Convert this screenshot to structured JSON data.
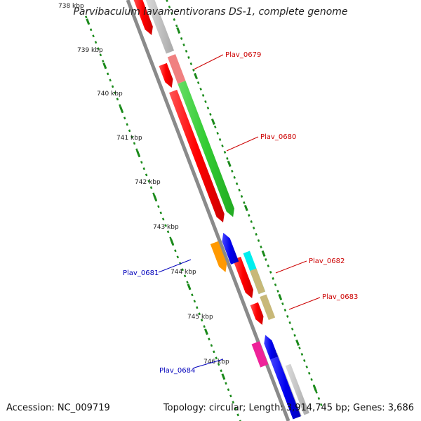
{
  "title": "Parvibaculum lavamentivorans DS-1, complete genome",
  "accession": "Accession: NC_009719",
  "summary": "Topology: circular; Length: 3,914,745 bp; Genes: 3,686",
  "ticks": [
    {
      "label": "738 kbp"
    },
    {
      "label": "739 kbp"
    },
    {
      "label": "740 kbp"
    },
    {
      "label": "741 kbp"
    },
    {
      "label": "742 kbp"
    },
    {
      "label": "743 kbp"
    },
    {
      "label": "744 kbp"
    },
    {
      "label": "745 kbp"
    },
    {
      "label": "746 kbp"
    }
  ],
  "genes": [
    {
      "name": "Plav_0679",
      "color": "#cc0000"
    },
    {
      "name": "Plav_0680",
      "color": "#cc0000"
    },
    {
      "name": "Plav_0681",
      "color": "#0000bb"
    },
    {
      "name": "Plav_0682",
      "color": "#cc0000"
    },
    {
      "name": "Plav_0683",
      "color": "#cc0000"
    },
    {
      "name": "Plav_0684",
      "color": "#0000bb"
    }
  ],
  "colors": {
    "backbone": "#8a8a8a",
    "tick": "#1a8a1a",
    "red": "#ee1111",
    "green": "#33cc33",
    "grey": "#c0c0c0",
    "pink": "#f08080",
    "orange": "#ff9900",
    "blue": "#1111ee",
    "cyan": "#00eeee",
    "tan": "#c8b878",
    "magenta": "#ee2299"
  }
}
